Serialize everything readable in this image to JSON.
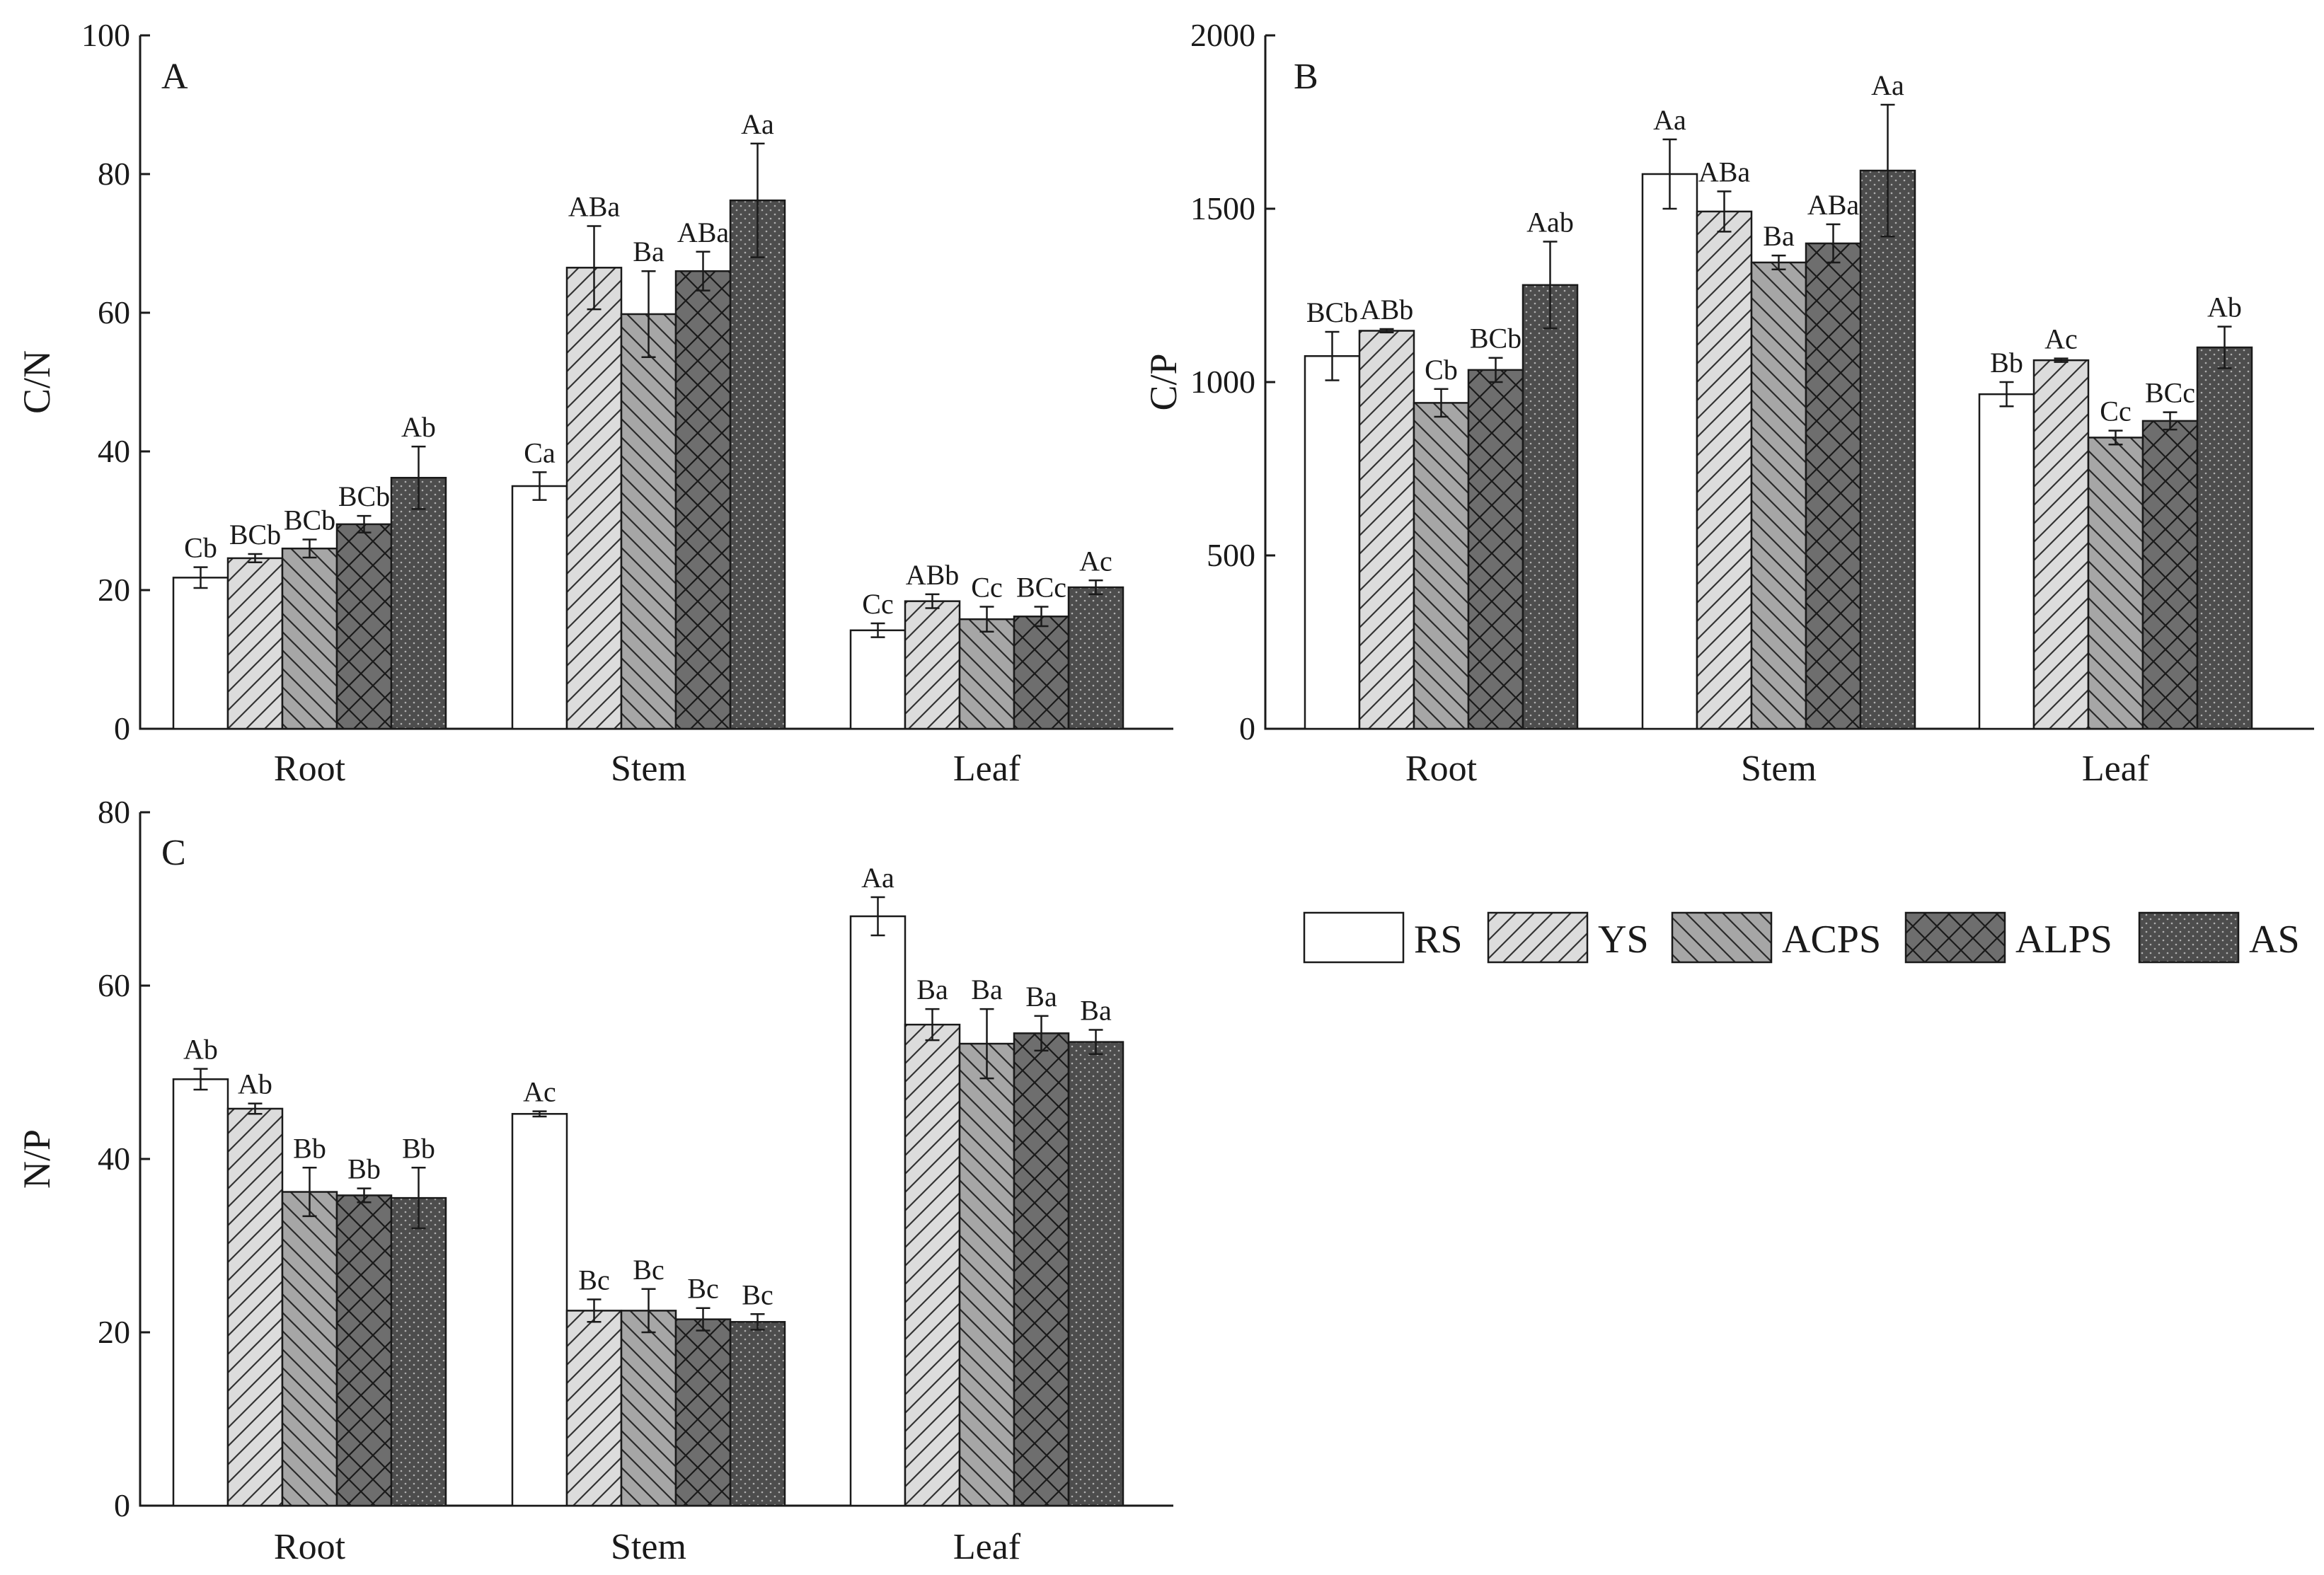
{
  "legend": [
    "RS",
    "YS",
    "ACPS",
    "ALPS",
    "AS"
  ],
  "series_styles": {
    "RS": {
      "fill": "#ffffff",
      "pattern": "none"
    },
    "YS": {
      "fill": "#dcdcdc",
      "pattern": "forward-diagonal"
    },
    "ACPS": {
      "fill": "#a6a6a6",
      "pattern": "back-diagonal"
    },
    "ALPS": {
      "fill": "#6e6e6e",
      "pattern": "crosshatch"
    },
    "AS": {
      "fill": "#4d4d4d",
      "pattern": "dots"
    }
  },
  "chart_data": [
    {
      "type": "bar",
      "panel": "A",
      "ylabel": "C/N",
      "ylim": [
        0,
        100
      ],
      "yticks": [
        0,
        20,
        40,
        60,
        80,
        100
      ],
      "categories": [
        "Root",
        "Stem",
        "Leaf"
      ],
      "series": [
        {
          "name": "RS",
          "values": [
            21.8,
            35.0,
            14.2
          ],
          "errors": [
            1.5,
            2.0,
            1.0
          ],
          "labels": [
            "Cb",
            "Ca",
            "Cc"
          ]
        },
        {
          "name": "YS",
          "values": [
            24.6,
            66.5,
            18.4
          ],
          "errors": [
            0.6,
            6.0,
            1.0
          ],
          "labels": [
            "BCb",
            "ABa",
            "ABb"
          ]
        },
        {
          "name": "ACPS",
          "values": [
            26.0,
            59.8,
            15.8
          ],
          "errors": [
            1.3,
            6.2,
            1.8
          ],
          "labels": [
            "BCb",
            "Ba",
            "Cc"
          ]
        },
        {
          "name": "ALPS",
          "values": [
            29.5,
            66.0,
            16.2
          ],
          "errors": [
            1.2,
            2.8,
            1.4
          ],
          "labels": [
            "BCb",
            "ABa",
            "BCc"
          ]
        },
        {
          "name": "AS",
          "values": [
            36.2,
            76.2,
            20.4
          ],
          "errors": [
            4.5,
            8.2,
            1.0
          ],
          "labels": [
            "Ab",
            "Aa",
            "Ac"
          ]
        }
      ]
    },
    {
      "type": "bar",
      "panel": "B",
      "ylabel": "C/P",
      "ylim": [
        0,
        2000
      ],
      "yticks": [
        0,
        500,
        1000,
        1500,
        2000
      ],
      "categories": [
        "Root",
        "Stem",
        "Leaf"
      ],
      "series": [
        {
          "name": "RS",
          "values": [
            1075,
            1600,
            965
          ],
          "errors": [
            70,
            100,
            35
          ],
          "labels": [
            "BCb",
            "Aa",
            "Bb"
          ]
        },
        {
          "name": "YS",
          "values": [
            1148,
            1492,
            1063
          ],
          "errors": [
            5,
            58,
            5
          ],
          "labels": [
            "ABb",
            "ABa",
            "Ac"
          ]
        },
        {
          "name": "ACPS",
          "values": [
            940,
            1345,
            840
          ],
          "errors": [
            40,
            20,
            20
          ],
          "labels": [
            "Cb",
            "Ba",
            "Cc"
          ]
        },
        {
          "name": "ALPS",
          "values": [
            1035,
            1400,
            888
          ],
          "errors": [
            35,
            55,
            25
          ],
          "labels": [
            "BCb",
            "ABa",
            "BCc"
          ]
        },
        {
          "name": "AS",
          "values": [
            1280,
            1610,
            1100
          ],
          "errors": [
            125,
            190,
            60
          ],
          "labels": [
            "Aab",
            "Aa",
            "Ab"
          ]
        }
      ]
    },
    {
      "type": "bar",
      "panel": "C",
      "ylabel": "N/P",
      "ylim": [
        0,
        80
      ],
      "yticks": [
        0,
        20,
        40,
        60,
        80
      ],
      "categories": [
        "Root",
        "Stem",
        "Leaf"
      ],
      "series": [
        {
          "name": "RS",
          "values": [
            49.2,
            45.2,
            68.0
          ],
          "errors": [
            1.2,
            0.3,
            2.2
          ],
          "labels": [
            "Ab",
            "Ac",
            "Aa"
          ]
        },
        {
          "name": "YS",
          "values": [
            45.8,
            22.5,
            55.5
          ],
          "errors": [
            0.6,
            1.3,
            1.8
          ],
          "labels": [
            "Ab",
            "Bc",
            "Ba"
          ]
        },
        {
          "name": "ACPS",
          "values": [
            36.2,
            22.5,
            53.3
          ],
          "errors": [
            2.8,
            2.5,
            4.0
          ],
          "labels": [
            "Bb",
            "Bc",
            "Ba"
          ]
        },
        {
          "name": "ALPS",
          "values": [
            35.8,
            21.5,
            54.5
          ],
          "errors": [
            0.8,
            1.3,
            2.0
          ],
          "labels": [
            "Bb",
            "Bc",
            "Ba"
          ]
        },
        {
          "name": "AS",
          "values": [
            35.5,
            21.2,
            53.5
          ],
          "errors": [
            3.5,
            0.9,
            1.4
          ],
          "labels": [
            "Bb",
            "Bc",
            "Ba"
          ]
        }
      ]
    }
  ]
}
